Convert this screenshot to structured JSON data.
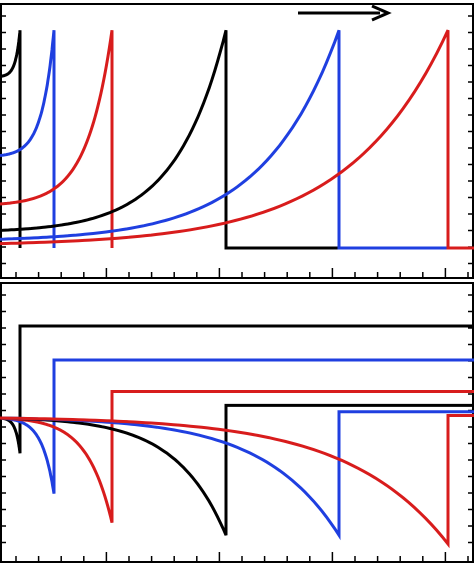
{
  "chart_data": [
    {
      "type": "line",
      "panel": "top",
      "title": "",
      "xlabel": "",
      "ylabel": "",
      "xlim": [
        0,
        474
      ],
      "ylim": [
        0,
        1
      ],
      "grid": false,
      "annotation": {
        "type": "arrow",
        "direction": "right",
        "color": "#000000"
      },
      "series": [
        {
          "color": "#000000",
          "curve": "exp-rise",
          "start": [
            0,
            0.78
          ],
          "peak": [
            20,
            0.99
          ],
          "drop_to": [
            20,
            0.0
          ],
          "flat_until": 20
        },
        {
          "color": "#1f3fe0",
          "curve": "exp-rise",
          "start": [
            0,
            0.42
          ],
          "peak": [
            54,
            0.99
          ],
          "drop_to": [
            54,
            0.0
          ],
          "flat_until": 54
        },
        {
          "color": "#d81c1c",
          "curve": "exp-rise",
          "start": [
            0,
            0.2
          ],
          "peak": [
            112,
            0.99
          ],
          "drop_to": [
            112,
            0.0
          ],
          "flat_until": 112
        },
        {
          "color": "#000000",
          "curve": "exp-rise",
          "start": [
            0,
            0.08
          ],
          "peak": [
            226,
            0.99
          ],
          "drop_to": [
            226,
            0.0
          ],
          "flat_until": 474
        },
        {
          "color": "#1f3fe0",
          "curve": "exp-rise",
          "start": [
            0,
            0.04
          ],
          "peak": [
            339,
            0.99
          ],
          "drop_to": [
            339,
            0.0
          ],
          "flat_until": 474
        },
        {
          "color": "#d81c1c",
          "curve": "exp-rise",
          "start": [
            0,
            0.02
          ],
          "peak": [
            448,
            0.99
          ],
          "drop_to": [
            448,
            0.0
          ],
          "flat_until": 474
        }
      ]
    },
    {
      "type": "line",
      "panel": "bottom",
      "title": "",
      "xlabel": "",
      "ylabel": "",
      "xlim": [
        0,
        474
      ],
      "ylim": [
        -1,
        1
      ],
      "grid": false,
      "series": [
        {
          "color": "#000000",
          "curve": "exp-fall",
          "start": [
            0,
            0.0
          ],
          "trough": [
            20,
            -0.28
          ],
          "jump_to": [
            20,
            0.73
          ],
          "flat_until": 474
        },
        {
          "color": "#1f3fe0",
          "curve": "exp-fall",
          "start": [
            0,
            0.0
          ],
          "trough": [
            54,
            -0.6
          ],
          "jump_to": [
            54,
            0.46
          ],
          "flat_until": 474
        },
        {
          "color": "#d81c1c",
          "curve": "exp-fall",
          "start": [
            0,
            0.0
          ],
          "trough": [
            112,
            -0.83
          ],
          "jump_to": [
            112,
            0.21
          ],
          "flat_until": 474
        },
        {
          "color": "#000000",
          "curve": "exp-fall",
          "start": [
            0,
            0.0
          ],
          "trough": [
            226,
            -0.93
          ],
          "jump_to": [
            226,
            0.1
          ],
          "flat_until": 474
        },
        {
          "color": "#1f3fe0",
          "curve": "exp-fall",
          "start": [
            0,
            0.0
          ],
          "trough": [
            339,
            -0.93
          ],
          "jump_to": [
            339,
            0.05
          ],
          "flat_until": 474
        },
        {
          "color": "#d81c1c",
          "curve": "exp-fall",
          "start": [
            0,
            0.0
          ],
          "trough": [
            448,
            -1.0
          ],
          "jump_to": [
            448,
            0.02
          ],
          "flat_until": 474
        }
      ]
    }
  ]
}
